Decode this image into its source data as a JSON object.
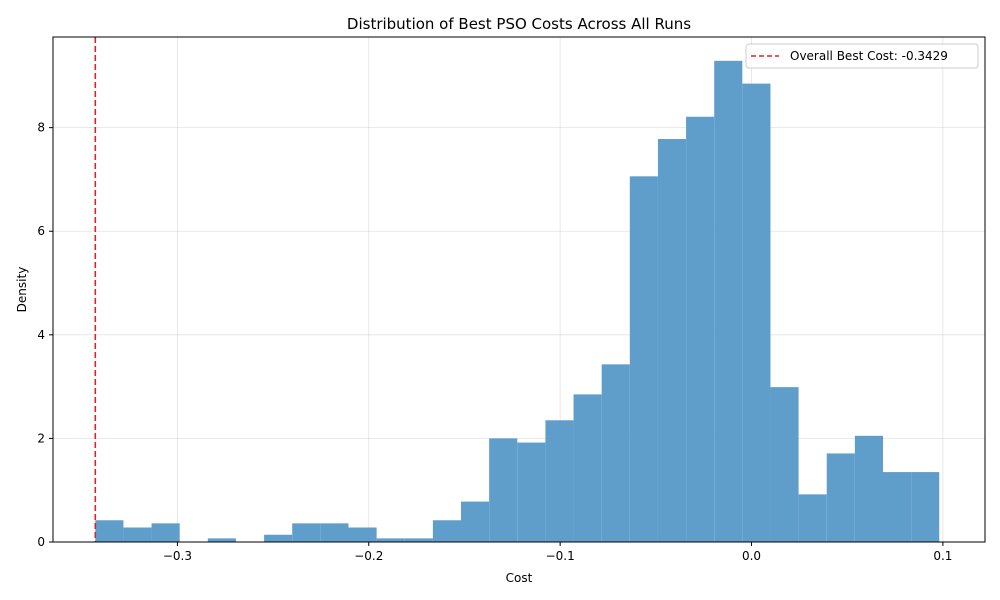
{
  "chart_data": {
    "type": "bar",
    "title": "Distribution of Best PSO Costs Across All Runs",
    "xlabel": "Cost",
    "ylabel": "Density",
    "xlim": [
      -0.365,
      0.122
    ],
    "ylim": [
      0,
      9.75
    ],
    "x_ticks": [
      -0.3,
      -0.2,
      -0.1,
      0.0,
      0.1
    ],
    "x_tick_labels": [
      "−0.3",
      "−0.2",
      "−0.1",
      "0.0",
      "0.1"
    ],
    "y_ticks": [
      0,
      2,
      4,
      6,
      8
    ],
    "y_tick_labels": [
      "0",
      "2",
      "4",
      "6",
      "8"
    ],
    "grid": true,
    "bar_color": "#5f9ecb",
    "bin_edges": [
      -0.3429,
      -0.3282,
      -0.3135,
      -0.2988,
      -0.2841,
      -0.2694,
      -0.2547,
      -0.24,
      -0.2253,
      -0.2106,
      -0.1959,
      -0.1812,
      -0.1665,
      -0.1518,
      -0.1371,
      -0.1224,
      -0.1077,
      -0.093,
      -0.0783,
      -0.0636,
      -0.0489,
      -0.0342,
      -0.0195,
      -0.0048,
      0.0099,
      0.0246,
      0.0393,
      0.054,
      0.0687,
      0.0834,
      0.0981
    ],
    "values": [
      0.42,
      0.28,
      0.36,
      0,
      0.07,
      0,
      0.14,
      0.36,
      0.36,
      0.28,
      0.07,
      0.07,
      0.42,
      0.78,
      2.0,
      1.92,
      2.35,
      2.85,
      3.43,
      7.06,
      7.78,
      8.21,
      9.29,
      8.85,
      2.99,
      0.92,
      1.71,
      2.05,
      1.35,
      1.35
    ],
    "reference_line": {
      "x": -0.3429,
      "color": "#d62728",
      "style": "dashed",
      "label": "Overall Best Cost: -0.3429"
    },
    "legend_position": "top-right"
  }
}
